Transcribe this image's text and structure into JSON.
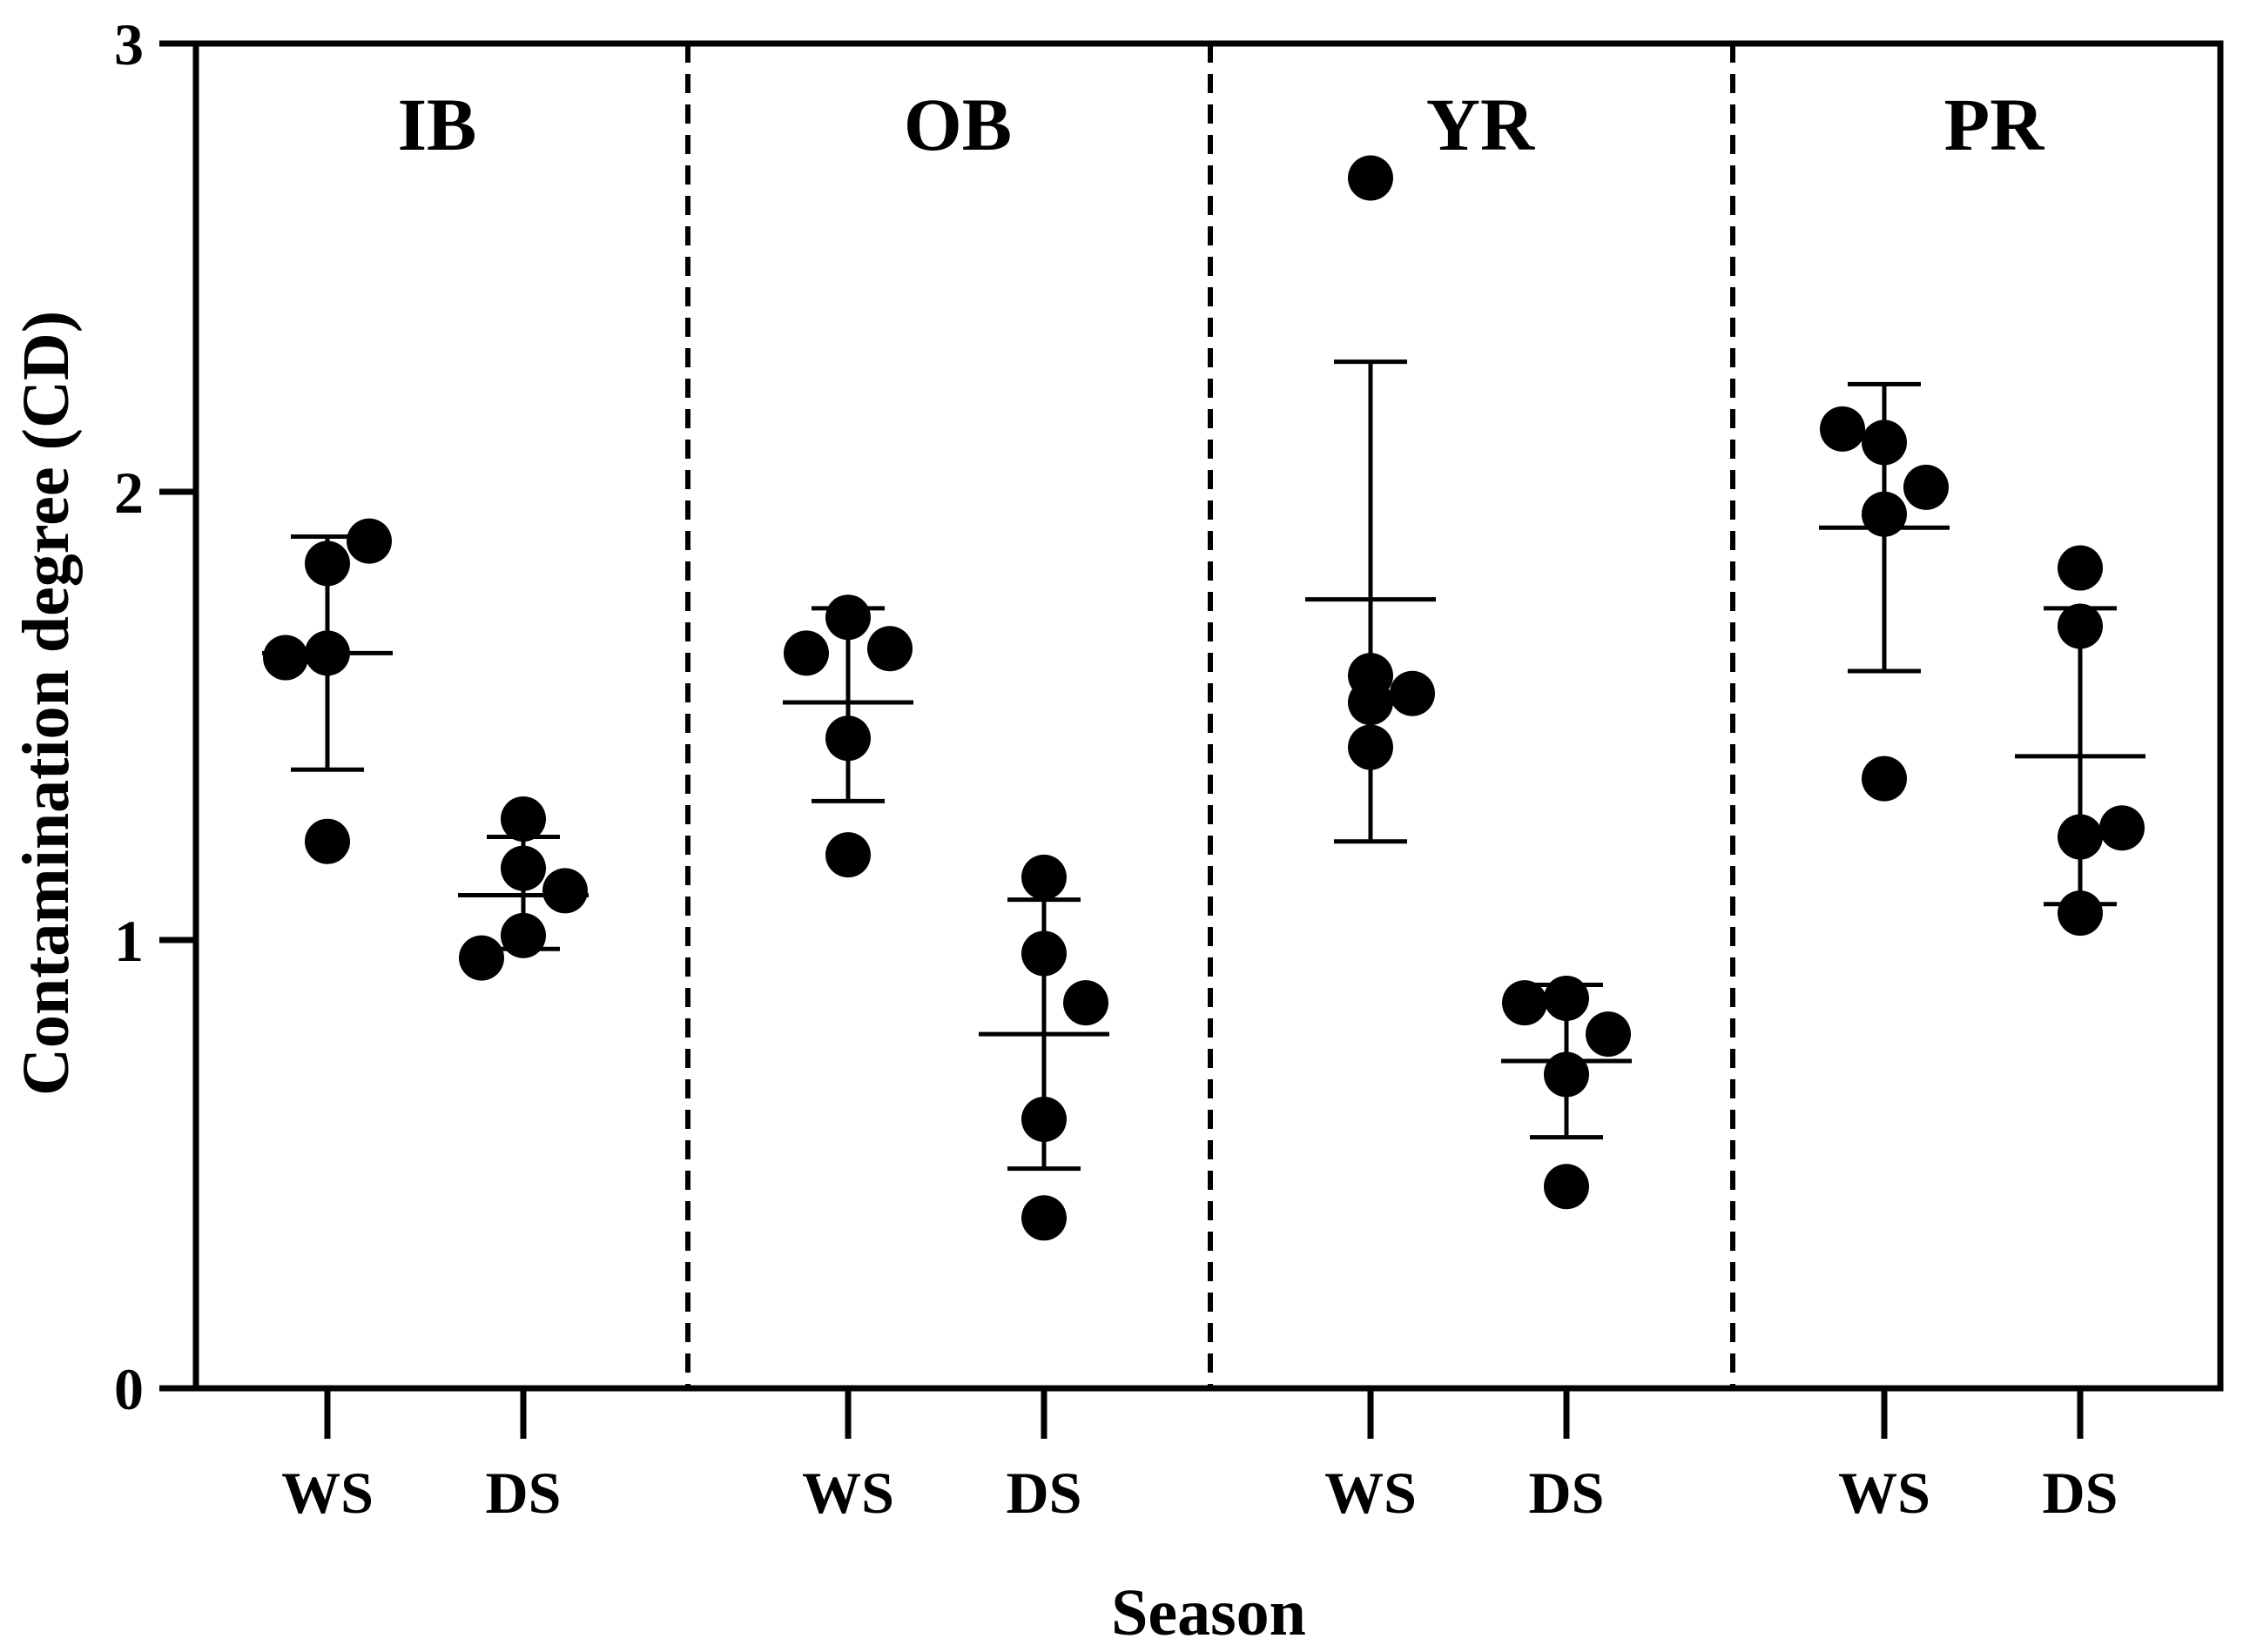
{
  "chart_data": {
    "type": "scatter",
    "title": "",
    "xlabel": "Season",
    "ylabel": "Contamination degree (CD)",
    "ylim": [
      0,
      3
    ],
    "yticks": [
      0,
      1,
      2,
      3
    ],
    "ytick_labels": [
      "0",
      "1",
      "2",
      "3"
    ],
    "grid": false,
    "legend": "none",
    "groups": [
      {
        "name": "IB",
        "categories": [
          {
            "label": "WS",
            "mean": 1.64,
            "sd_upper": 1.9,
            "sd_lower": 1.38,
            "points": [
              1.63,
              1.84,
              1.89,
              1.64,
              1.22
            ]
          },
          {
            "label": "DS",
            "mean": 1.1,
            "sd_upper": 1.23,
            "sd_lower": 0.98,
            "points": [
              0.96,
              1.27,
              1.11,
              1.16,
              1.01
            ]
          }
        ]
      },
      {
        "name": "OB",
        "categories": [
          {
            "label": "WS",
            "mean": 1.53,
            "sd_upper": 1.74,
            "sd_lower": 1.31,
            "points": [
              1.64,
              1.72,
              1.65,
              1.45,
              1.19
            ]
          },
          {
            "label": "DS",
            "mean": 0.79,
            "sd_upper": 1.09,
            "sd_lower": 0.49,
            "points": [
              1.14,
              0.97,
              0.86,
              0.6,
              0.38
            ]
          }
        ]
      },
      {
        "name": "YR",
        "categories": [
          {
            "label": "WS",
            "mean": 1.76,
            "sd_upper": 2.29,
            "sd_lower": 1.22,
            "points": [
              2.7,
              1.59,
              1.55,
              1.53,
              1.43
            ]
          },
          {
            "label": "DS",
            "mean": 0.73,
            "sd_upper": 0.9,
            "sd_lower": 0.56,
            "points": [
              0.86,
              0.87,
              0.79,
              0.7,
              0.45
            ]
          }
        ]
      },
      {
        "name": "PR",
        "categories": [
          {
            "label": "WS",
            "mean": 1.92,
            "sd_upper": 2.24,
            "sd_lower": 1.6,
            "points": [
              2.14,
              2.11,
              2.01,
              1.95,
              1.36
            ]
          },
          {
            "label": "DS",
            "mean": 1.41,
            "sd_upper": 1.74,
            "sd_lower": 1.08,
            "points": [
              1.83,
              1.7,
              1.25,
              1.23,
              1.06
            ]
          }
        ]
      }
    ]
  }
}
